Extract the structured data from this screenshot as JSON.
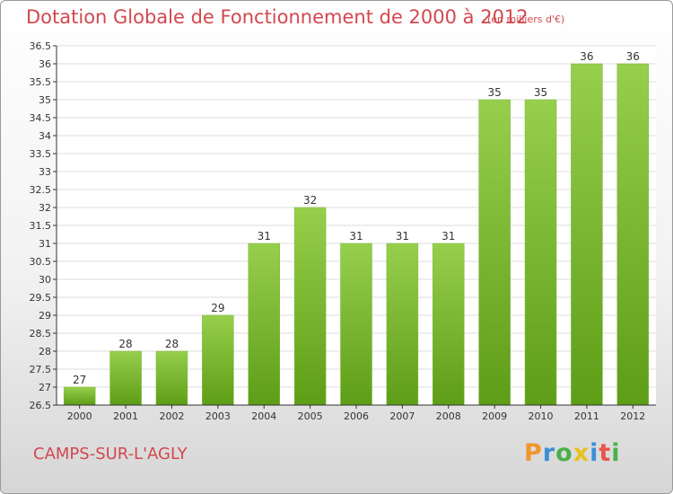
{
  "title": "Dotation Globale de Fonctionnement de 2000 à 2012",
  "unit_label": "(en milliers d'€)",
  "commune": "CAMPS-SUR-L'AGLY",
  "logo": {
    "letters": [
      "P",
      "r",
      "o",
      "x",
      "i",
      "t",
      "i"
    ],
    "colors": [
      "#f0962c",
      "#3b8fd6",
      "#4bb04a",
      "#e8c21c",
      "#3b8fd6",
      "#e8554a",
      "#4bb04a"
    ]
  },
  "colors": {
    "bar_top": "#96cf4c",
    "bar_bottom": "#5e9d17",
    "text": "#d2484f"
  },
  "chart_data": {
    "type": "bar",
    "categories": [
      "2000",
      "2001",
      "2002",
      "2003",
      "2004",
      "2005",
      "2006",
      "2007",
      "2008",
      "2009",
      "2010",
      "2011",
      "2012"
    ],
    "values": [
      27,
      28,
      28,
      29,
      31,
      32,
      31,
      31,
      31,
      35,
      35,
      36,
      36
    ],
    "data_labels": [
      "27",
      "28",
      "28",
      "29",
      "31",
      "32",
      "31",
      "31",
      "31",
      "35",
      "35",
      "36",
      "36"
    ],
    "ylim": [
      26.5,
      36.5
    ],
    "yticks": [
      26.5,
      27,
      27.5,
      28,
      28.5,
      29,
      29.5,
      30,
      30.5,
      31,
      31.5,
      32,
      32.5,
      33,
      33.5,
      34,
      34.5,
      35,
      35.5,
      36,
      36.5
    ],
    "ytick_labels": [
      "26.5",
      "27",
      "27.5",
      "28",
      "28.5",
      "29",
      "29.5",
      "30",
      "30.5",
      "31",
      "31.5",
      "32",
      "32.5",
      "33",
      "33.5",
      "34",
      "34.5",
      "35",
      "35.5",
      "36",
      "36.5"
    ],
    "grid": true
  }
}
